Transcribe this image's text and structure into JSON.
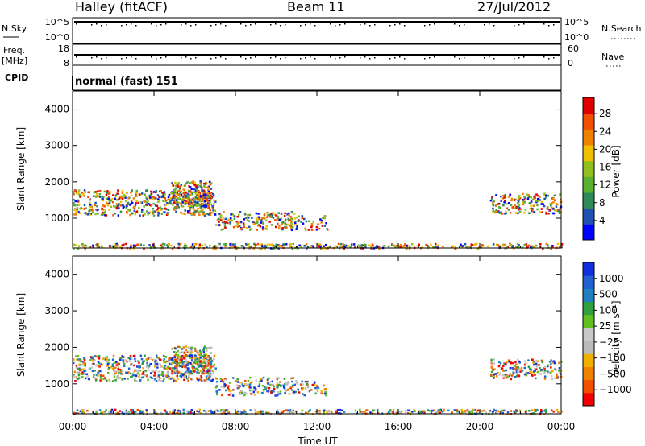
{
  "header": {
    "title": "Halley (fitACF)",
    "beam": "Beam 11",
    "date": "27/Jul/2012"
  },
  "strip_labels": {
    "nsky": "N.Sky",
    "nsky_top": "10^5",
    "nsky_bottom": "10^0",
    "nsearch": "N.Search",
    "nsearch_top": "10^5",
    "nsearch_bottom": "10^0",
    "freq_line1": "Freq.",
    "freq_line2": "[MHz]",
    "freq_top": "18",
    "freq_bottom": "8",
    "nave": "Nave",
    "nave_top": "60",
    "nave_bottom": "0",
    "cpid": "CPID",
    "cpid_text": "normal (fast) 151"
  },
  "colors": {
    "power_scale": [
      "#0000ff",
      "#2050b0",
      "#2e8b57",
      "#5ab030",
      "#90c020",
      "#f0c000",
      "#f08000",
      "#f05000",
      "#e00000"
    ],
    "velocity_scale": [
      "#f00000",
      "#f05000",
      "#f08000",
      "#f0b000",
      "#bbbbbb",
      "#c8c8c8",
      "#60c020",
      "#30a040",
      "#2080c0",
      "#2060d0",
      "#1030e0"
    ]
  },
  "chart_data": [
    {
      "type": "heatmap",
      "name": "power",
      "ylabel": "Slant Range [km]",
      "x_ticks": [
        "00:00",
        "04:00",
        "08:00",
        "12:00",
        "16:00",
        "20:00",
        "00:00"
      ],
      "y_ticks": [
        "1000",
        "2000",
        "3000",
        "4000"
      ],
      "ylim": [
        180,
        4500
      ],
      "colorbar_label": "Power [dB]",
      "colorbar_ticks": [
        "4",
        "8",
        "12",
        "16",
        "20",
        "24",
        "28"
      ],
      "grid": false
    },
    {
      "type": "heatmap",
      "name": "velocity",
      "ylabel": "Slant Range [km]",
      "xlabel": "Time UT",
      "x_ticks": [
        "00:00",
        "04:00",
        "08:00",
        "12:00",
        "16:00",
        "20:00",
        "00:00"
      ],
      "y_ticks": [
        "1000",
        "2000",
        "3000",
        "4000"
      ],
      "ylim": [
        180,
        4500
      ],
      "colorbar_label": "Velocity [m s⁻¹]",
      "colorbar_ticks": [
        "1000",
        "500",
        "100",
        "25",
        "−25",
        "−100",
        "−500",
        "−1000"
      ],
      "grid": false
    }
  ]
}
